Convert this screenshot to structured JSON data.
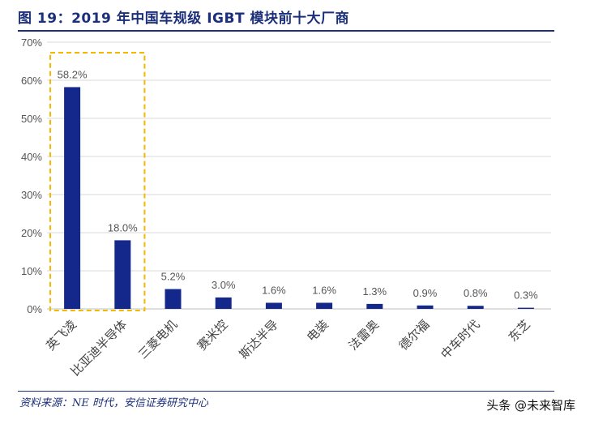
{
  "header": {
    "title": "图 19：2019 年中国车规级 IGBT 模块前十大厂商"
  },
  "footer": {
    "source": "资料来源：NE 时代，安信证券研究中心",
    "watermark": "头条 @未来智库"
  },
  "chart_data": {
    "type": "bar",
    "title": "",
    "xlabel": "",
    "ylabel": "",
    "categories": [
      "英飞凌",
      "比亚迪半导体",
      "三菱电机",
      "赛米控",
      "斯达半导",
      "电装",
      "法雷奥",
      "德尔福",
      "中车时代",
      "东芝"
    ],
    "values": [
      58.2,
      18.0,
      5.2,
      3.0,
      1.6,
      1.6,
      1.3,
      0.9,
      0.8,
      0.3
    ],
    "value_labels": [
      "58.2%",
      "18.0%",
      "5.2%",
      "3.0%",
      "1.6%",
      "1.6%",
      "1.3%",
      "0.9%",
      "0.8%",
      "0.3%"
    ],
    "ylim": [
      0,
      70
    ],
    "y_ticks": [
      0,
      10,
      20,
      30,
      40,
      50,
      60,
      70
    ],
    "y_tick_labels": [
      "0%",
      "10%",
      "20%",
      "30%",
      "40%",
      "50%",
      "60%",
      "70%"
    ],
    "grid": true,
    "legend": "none",
    "highlight_categories": [
      "英飞凌",
      "比亚迪半导体"
    ],
    "colors": {
      "bar": "#14288c",
      "grid": "#d9d9d9",
      "axis": "#bfbfbf",
      "highlight_box": "#f5b800",
      "title": "#1b2f7a"
    }
  }
}
